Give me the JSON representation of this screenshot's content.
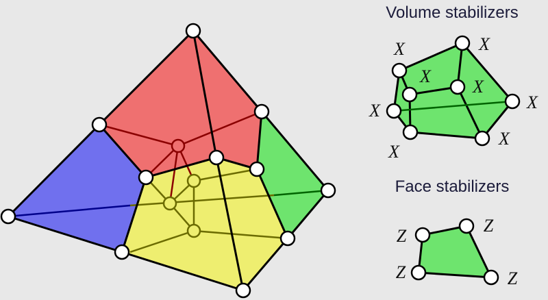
{
  "volume_stabilizers": {
    "title": "Volume stabilizers",
    "labels": [
      "X",
      "X",
      "X",
      "X",
      "X",
      "X",
      "X",
      "X"
    ]
  },
  "face_stabilizers": {
    "title": "Face stabilizers",
    "labels": [
      "Z",
      "Z",
      "Z",
      "Z"
    ]
  }
}
